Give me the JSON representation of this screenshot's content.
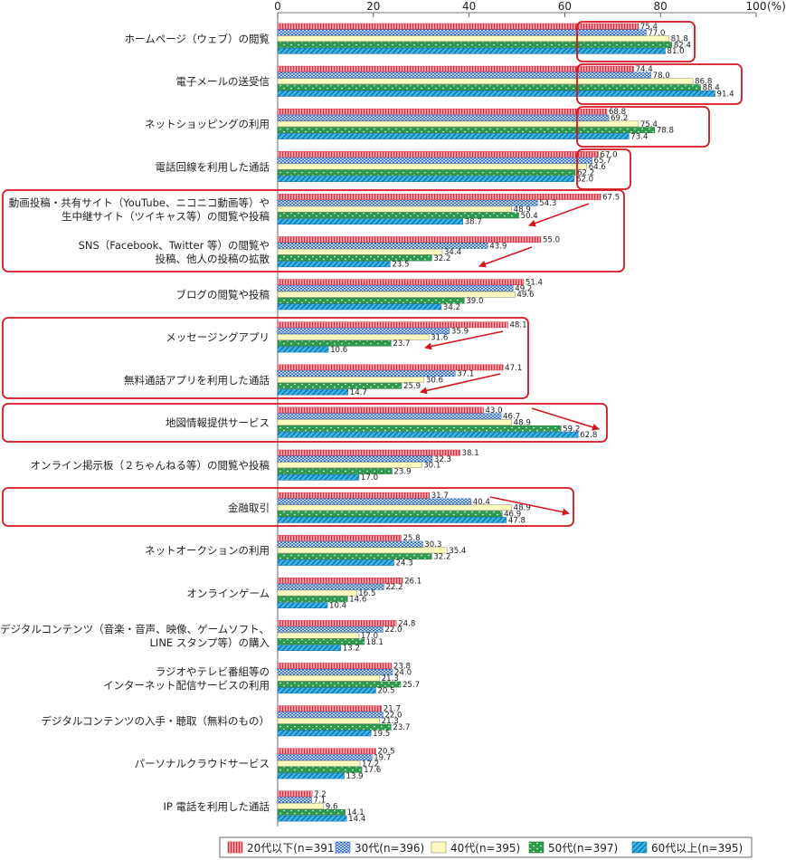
{
  "chart_data": {
    "type": "bar",
    "orientation": "horizontal",
    "unit": "(%)",
    "xlim": [
      0,
      100
    ],
    "ticks": [
      "0",
      "20",
      "40",
      "60",
      "80",
      "100"
    ],
    "grid": false,
    "legend_position": "bottom",
    "categories": [
      "ホームページ（ウェブ）の閲覧",
      "電子メールの送受信",
      "ネットショッピングの利用",
      "電話回線を利用した通話",
      "動画投稿・共有サイト（YouTube、ニコニコ動画等）や\n生中継サイト（ツイキャス等）の閲覧や投稿",
      "SNS（Facebook、Twitter 等）の閲覧や\n投稿、他人の投稿の拡散",
      "ブログの閲覧や投稿",
      "メッセージングアプリ",
      "無料通話アプリを利用した通話",
      "地図情報提供サービス",
      "オンライン掲示板（２ちゃんねる等）の閲覧や投稿",
      "金融取引",
      "ネットオークションの利用",
      "オンラインゲーム",
      "デジタルコンテンツ（音楽・音声、映像、ゲームソフト、\nLINE スタンプ等）の購入",
      "ラジオやテレビ番組等の\nインターネット配信サービスの利用",
      "デジタルコンテンツの入手・聴取（無料のもの）",
      "パーソナルクラウドサービス",
      "IP 電話を利用した通話"
    ],
    "series": [
      {
        "name": "20代以下(n=391)",
        "values": [
          75.4,
          74.4,
          68.8,
          67.0,
          67.5,
          55.0,
          51.4,
          48.1,
          47.1,
          43.0,
          38.1,
          31.7,
          25.8,
          26.1,
          24.8,
          23.8,
          21.7,
          20.5,
          7.2
        ]
      },
      {
        "name": "30代(n=396)",
        "values": [
          77.0,
          78.0,
          69.2,
          65.7,
          54.3,
          43.9,
          49.2,
          35.9,
          37.1,
          46.7,
          32.3,
          40.4,
          30.3,
          22.2,
          22.0,
          24.0,
          22.0,
          19.7,
          7.1
        ]
      },
      {
        "name": "40代(n=395)",
        "values": [
          81.8,
          86.8,
          75.4,
          64.6,
          48.9,
          34.4,
          49.6,
          31.6,
          30.6,
          48.9,
          30.1,
          48.9,
          35.4,
          16.5,
          17.0,
          21.3,
          21.3,
          17.2,
          9.6
        ]
      },
      {
        "name": "50代(n=397)",
        "values": [
          82.4,
          88.4,
          78.8,
          62.2,
          50.4,
          32.2,
          39.0,
          23.7,
          25.9,
          59.2,
          23.9,
          46.9,
          32.2,
          14.6,
          18.1,
          25.7,
          23.7,
          17.6,
          14.1
        ]
      },
      {
        "name": "60代以上(n=395)",
        "values": [
          81.0,
          91.4,
          73.4,
          62.0,
          38.7,
          23.5,
          34.2,
          10.6,
          14.7,
          62.8,
          17.0,
          47.8,
          24.3,
          10.4,
          13.2,
          20.5,
          19.5,
          13.9,
          14.4
        ]
      }
    ],
    "colors": {
      "series_fill": [
        "#f7a1ab",
        "#d7e5f7",
        "#fffbbf",
        "#2f9a4e",
        "#35b9e9"
      ],
      "series_pattern": [
        "#d4303f",
        "#2c66bc",
        "#8a8a6a",
        "#ffffff",
        "#1c6ea8"
      ],
      "highlight": "#d4161f",
      "arrow": "#d4161f"
    }
  }
}
